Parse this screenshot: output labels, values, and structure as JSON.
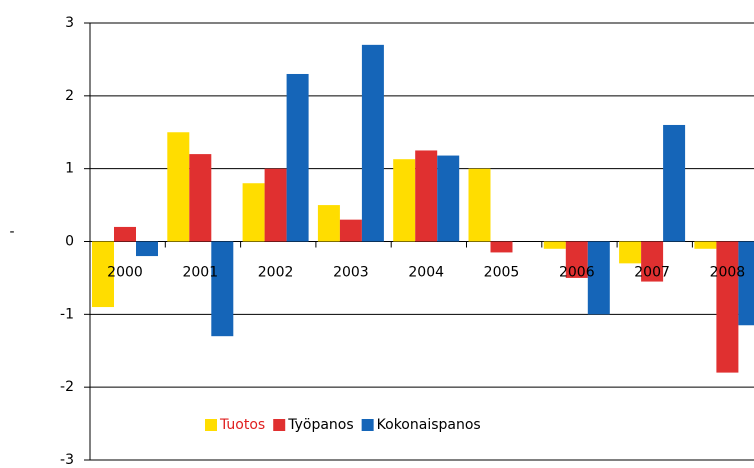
{
  "chart_data": {
    "type": "bar",
    "y_label": "-",
    "categories": [
      "2000",
      "2001",
      "2002",
      "2003",
      "2004",
      "2005",
      "2006",
      "2007",
      "2008"
    ],
    "series": [
      {
        "name": "Tuotos",
        "color": "#ffdd00",
        "label_color": "#e02020",
        "values": [
          -0.9,
          1.5,
          0.8,
          0.5,
          1.13,
          1.0,
          -0.1,
          -0.3,
          -0.1
        ]
      },
      {
        "name": "Työpanos",
        "color": "#e03030",
        "label_color": "#000000",
        "values": [
          0.2,
          1.2,
          1.0,
          0.3,
          1.25,
          -0.15,
          -0.5,
          -0.55,
          -1.8
        ]
      },
      {
        "name": "Kokonaispanos",
        "color": "#1565b8",
        "label_color": "#000000",
        "values": [
          -0.2,
          -1.3,
          2.3,
          2.7,
          1.18,
          null,
          -1.0,
          1.6,
          -1.15
        ]
      }
    ],
    "ylim": [
      -3,
      3
    ],
    "yticks": [
      -3,
      -2,
      -1,
      0,
      1,
      2,
      3
    ],
    "grid": true
  }
}
